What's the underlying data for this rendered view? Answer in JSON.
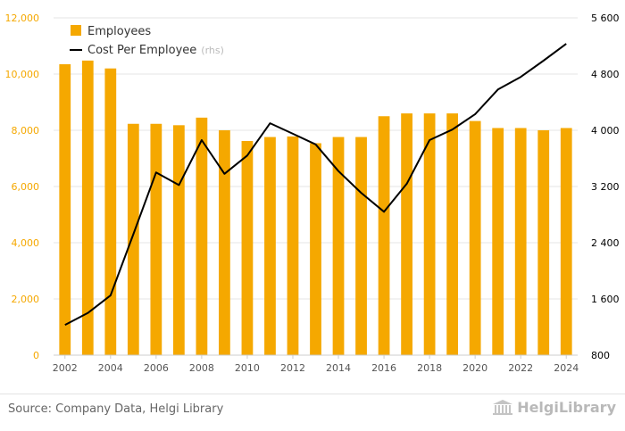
{
  "chart_data": {
    "type": "bar+line",
    "categories": [
      "2002",
      "2003",
      "2004",
      "2005",
      "2006",
      "2007",
      "2008",
      "2009",
      "2010",
      "2011",
      "2012",
      "2013",
      "2014",
      "2015",
      "2016",
      "2017",
      "2018",
      "2019",
      "2020",
      "2021",
      "2022",
      "2023",
      "2024"
    ],
    "x_tick_labels": [
      "2002",
      "2004",
      "2006",
      "2008",
      "2010",
      "2012",
      "2014",
      "2016",
      "2018",
      "2020",
      "2022",
      "2024"
    ],
    "series": [
      {
        "name": "Employees",
        "type": "bar",
        "axis": "left",
        "color": "#F5A800",
        "values": [
          10350,
          10480,
          10200,
          8230,
          8230,
          8180,
          8450,
          8000,
          7620,
          7760,
          7780,
          7540,
          7760,
          7760,
          8500,
          8600,
          8600,
          8600,
          8330,
          8080,
          8080,
          8000,
          8080
        ]
      },
      {
        "name": "Cost Per Employee",
        "name_suffix": "(rhs)",
        "type": "line",
        "axis": "right",
        "color": "#000000",
        "values": [
          1230,
          1400,
          1650,
          2520,
          3400,
          3220,
          3860,
          3380,
          3640,
          4100,
          3950,
          3800,
          3420,
          3110,
          2840,
          3240,
          3860,
          4010,
          4230,
          4580,
          4760,
          4990,
          5230
        ]
      }
    ],
    "y_left": {
      "ylim": [
        0,
        12000
      ],
      "ticks": [
        0,
        2000,
        4000,
        6000,
        8000,
        10000,
        12000
      ],
      "tick_labels": [
        "0",
        "2,000",
        "4,000",
        "6,000",
        "8,000",
        "10,000",
        "12,000"
      ],
      "tick_color": "#F5A800"
    },
    "y_right": {
      "ylim": [
        800,
        5600
      ],
      "ticks": [
        800,
        1600,
        2400,
        3200,
        4000,
        4800,
        5600
      ],
      "tick_labels": [
        "800",
        "1 600",
        "2 400",
        "3 200",
        "4 000",
        "4 800",
        "5 600"
      ],
      "tick_color": "#000000"
    },
    "grid": true,
    "legend_position": "top-left"
  },
  "footer": {
    "source": "Source: Company Data, Helgi Library",
    "logo_text": "HelgiLibrary"
  }
}
